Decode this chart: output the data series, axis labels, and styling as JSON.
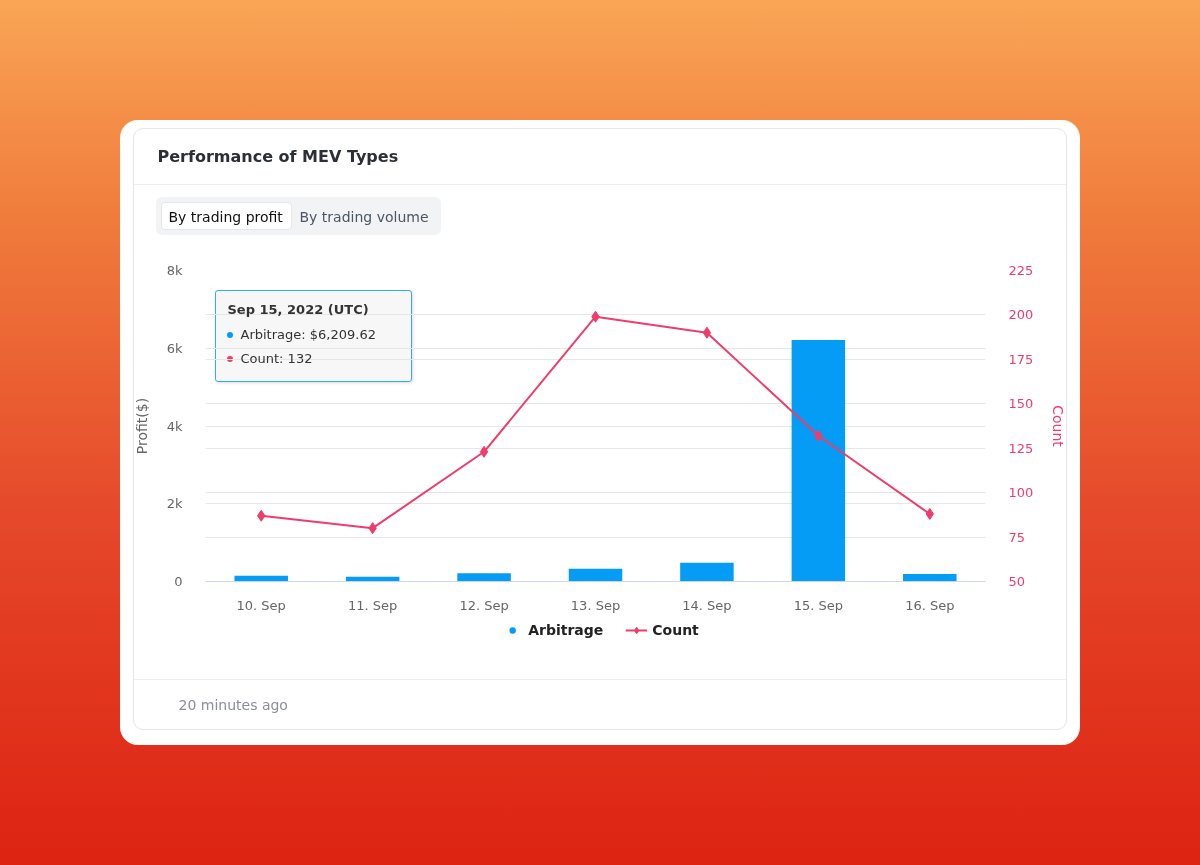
{
  "chart_data": {
    "type": "bar",
    "title": "Performance of MEV Types",
    "ylabel": "Profit($)",
    "y2label": "Count",
    "categories": [
      "10. Sep",
      "11. Sep",
      "12. Sep",
      "13. Sep",
      "14. Sep",
      "15. Sep",
      "16. Sep"
    ],
    "series": [
      {
        "name": "Arbitrage",
        "color": "#049cf4",
        "values": [
          150,
          120,
          210,
          330,
          480,
          6209.62,
          190
        ]
      },
      {
        "name": "Count",
        "type": "line",
        "axis": "y2",
        "color": "#ef3d6b",
        "values": [
          87,
          80,
          123,
          199,
          190,
          132,
          88
        ]
      }
    ],
    "ylim": [
      0,
      8000
    ],
    "yticks": [
      0,
      {
        "value": 2000,
        "label": "2k"
      },
      {
        "value": 4000,
        "label": "4k"
      },
      {
        "value": 6000,
        "label": "6k"
      },
      {
        "value": 8000,
        "label": "8k"
      }
    ],
    "y2lim": [
      50,
      225
    ],
    "y2ticks": [
      50,
      75,
      100,
      125,
      150,
      175,
      200,
      225
    ],
    "grid": "y",
    "legend": "bottom",
    "marker": "diamond",
    "line_style": "solid",
    "annotations": [
      "By trading profit",
      "By trading volume",
      "Sep 15, 2022 (UTC)",
      "Arbitrage: $6,209.62",
      "Count: 132",
      "20 minutes ago"
    ]
  }
}
